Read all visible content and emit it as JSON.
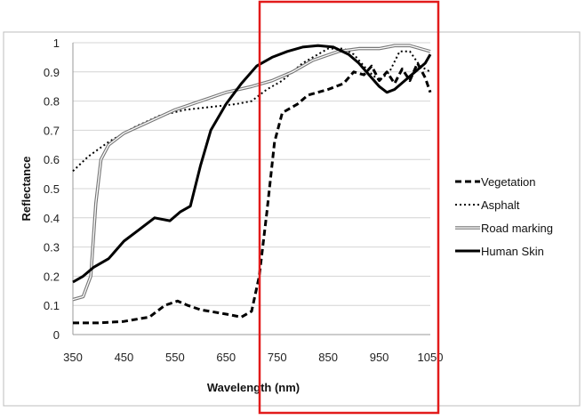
{
  "chart_data": {
    "type": "line",
    "title": "",
    "xlabel": "Wavelength (nm)",
    "ylabel": "Reflectance",
    "xlim": [
      350,
      1050
    ],
    "ylim": [
      0,
      1
    ],
    "x_ticks": [
      "350",
      "450",
      "550",
      "650",
      "750",
      "850",
      "950",
      "1050"
    ],
    "y_ticks": [
      "0",
      "0.1",
      "0.2",
      "0.3",
      "0.4",
      "0.5",
      "0.6",
      "0.7",
      "0.8",
      "0.9",
      "1"
    ],
    "grid": "horizontal",
    "legend_position": "right",
    "highlight_box_color": "#e21b1b",
    "series": [
      {
        "name": "Vegetation",
        "style": "dashed",
        "color": "#000000",
        "points": [
          [
            350,
            0.04
          ],
          [
            400,
            0.04
          ],
          [
            450,
            0.045
          ],
          [
            500,
            0.06
          ],
          [
            530,
            0.1
          ],
          [
            555,
            0.115
          ],
          [
            575,
            0.1
          ],
          [
            600,
            0.085
          ],
          [
            650,
            0.07
          ],
          [
            680,
            0.06
          ],
          [
            700,
            0.08
          ],
          [
            715,
            0.2
          ],
          [
            730,
            0.42
          ],
          [
            745,
            0.66
          ],
          [
            760,
            0.76
          ],
          [
            790,
            0.79
          ],
          [
            810,
            0.82
          ],
          [
            850,
            0.84
          ],
          [
            880,
            0.86
          ],
          [
            900,
            0.9
          ],
          [
            920,
            0.89
          ],
          [
            935,
            0.92
          ],
          [
            950,
            0.87
          ],
          [
            965,
            0.9
          ],
          [
            980,
            0.86
          ],
          [
            995,
            0.91
          ],
          [
            1010,
            0.87
          ],
          [
            1025,
            0.93
          ],
          [
            1040,
            0.88
          ],
          [
            1050,
            0.83
          ]
        ]
      },
      {
        "name": "Asphalt",
        "style": "dotted",
        "color": "#000000",
        "points": [
          [
            350,
            0.56
          ],
          [
            380,
            0.61
          ],
          [
            420,
            0.66
          ],
          [
            470,
            0.71
          ],
          [
            520,
            0.75
          ],
          [
            570,
            0.77
          ],
          [
            620,
            0.78
          ],
          [
            670,
            0.79
          ],
          [
            700,
            0.8
          ],
          [
            730,
            0.84
          ],
          [
            760,
            0.87
          ],
          [
            800,
            0.93
          ],
          [
            850,
            0.98
          ],
          [
            880,
            0.98
          ],
          [
            900,
            0.96
          ],
          [
            930,
            0.9
          ],
          [
            950,
            0.87
          ],
          [
            970,
            0.9
          ],
          [
            990,
            0.97
          ],
          [
            1010,
            0.97
          ],
          [
            1030,
            0.92
          ],
          [
            1050,
            0.9
          ]
        ]
      },
      {
        "name": "Road marking",
        "style": "double",
        "color": "#777777",
        "points": [
          [
            350,
            0.12
          ],
          [
            370,
            0.13
          ],
          [
            385,
            0.2
          ],
          [
            395,
            0.45
          ],
          [
            405,
            0.6
          ],
          [
            420,
            0.65
          ],
          [
            450,
            0.69
          ],
          [
            500,
            0.73
          ],
          [
            550,
            0.77
          ],
          [
            600,
            0.8
          ],
          [
            650,
            0.83
          ],
          [
            700,
            0.85
          ],
          [
            740,
            0.87
          ],
          [
            780,
            0.9
          ],
          [
            820,
            0.94
          ],
          [
            870,
            0.97
          ],
          [
            910,
            0.98
          ],
          [
            950,
            0.98
          ],
          [
            980,
            0.99
          ],
          [
            1010,
            0.99
          ],
          [
            1050,
            0.97
          ]
        ]
      },
      {
        "name": "Human Skin",
        "style": "solid",
        "color": "#000000",
        "points": [
          [
            350,
            0.18
          ],
          [
            370,
            0.2
          ],
          [
            390,
            0.23
          ],
          [
            420,
            0.26
          ],
          [
            450,
            0.32
          ],
          [
            480,
            0.36
          ],
          [
            510,
            0.4
          ],
          [
            540,
            0.39
          ],
          [
            560,
            0.42
          ],
          [
            580,
            0.44
          ],
          [
            600,
            0.58
          ],
          [
            620,
            0.7
          ],
          [
            650,
            0.79
          ],
          [
            680,
            0.86
          ],
          [
            710,
            0.92
          ],
          [
            740,
            0.95
          ],
          [
            770,
            0.97
          ],
          [
            800,
            0.985
          ],
          [
            830,
            0.99
          ],
          [
            860,
            0.985
          ],
          [
            890,
            0.96
          ],
          [
            910,
            0.93
          ],
          [
            930,
            0.89
          ],
          [
            950,
            0.85
          ],
          [
            965,
            0.83
          ],
          [
            980,
            0.84
          ],
          [
            1000,
            0.87
          ],
          [
            1020,
            0.9
          ],
          [
            1040,
            0.93
          ],
          [
            1050,
            0.96
          ]
        ]
      }
    ]
  }
}
